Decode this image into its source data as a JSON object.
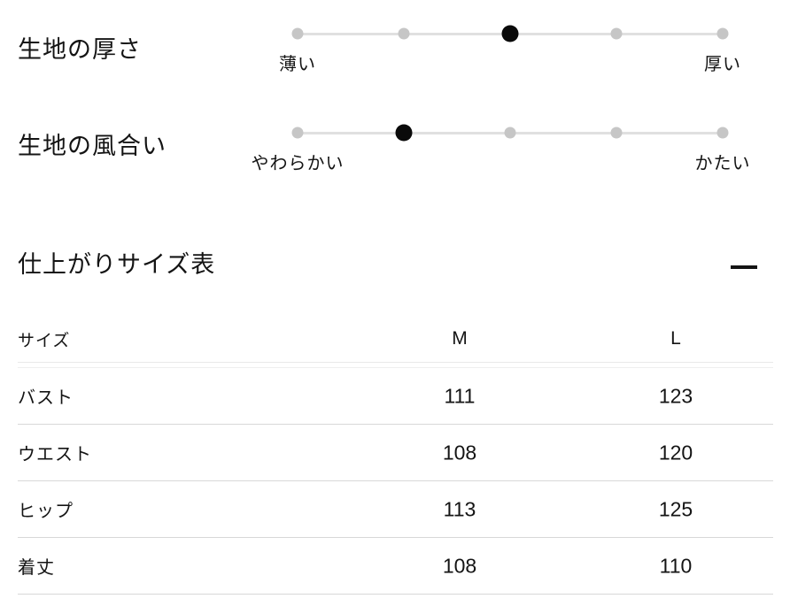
{
  "scales": [
    {
      "label": "生地の厚さ",
      "left_label": "薄い",
      "right_label": "厚い",
      "value": 3,
      "steps": 5
    },
    {
      "label": "生地の風合い",
      "left_label": "やわらかい",
      "right_label": "かたい",
      "value": 2,
      "steps": 5
    }
  ],
  "size_section": {
    "title": "仕上がりサイズ表",
    "collapse_icon": "minus",
    "table": {
      "header": {
        "size": "サイズ",
        "m": "M",
        "l": "L"
      },
      "rows": [
        {
          "label": "バスト",
          "m": "111",
          "l": "123"
        },
        {
          "label": "ウエスト",
          "m": "108",
          "l": "120"
        },
        {
          "label": "ヒップ",
          "m": "113",
          "l": "125"
        },
        {
          "label": "着丈",
          "m": "108",
          "l": "110"
        }
      ]
    }
  },
  "colors": {
    "text": "#141414",
    "dot_inactive": "#c6c6c6",
    "dot_active": "#0a0a0a",
    "track": "#e0e0e0",
    "row_divider": "#d8d8d8"
  }
}
